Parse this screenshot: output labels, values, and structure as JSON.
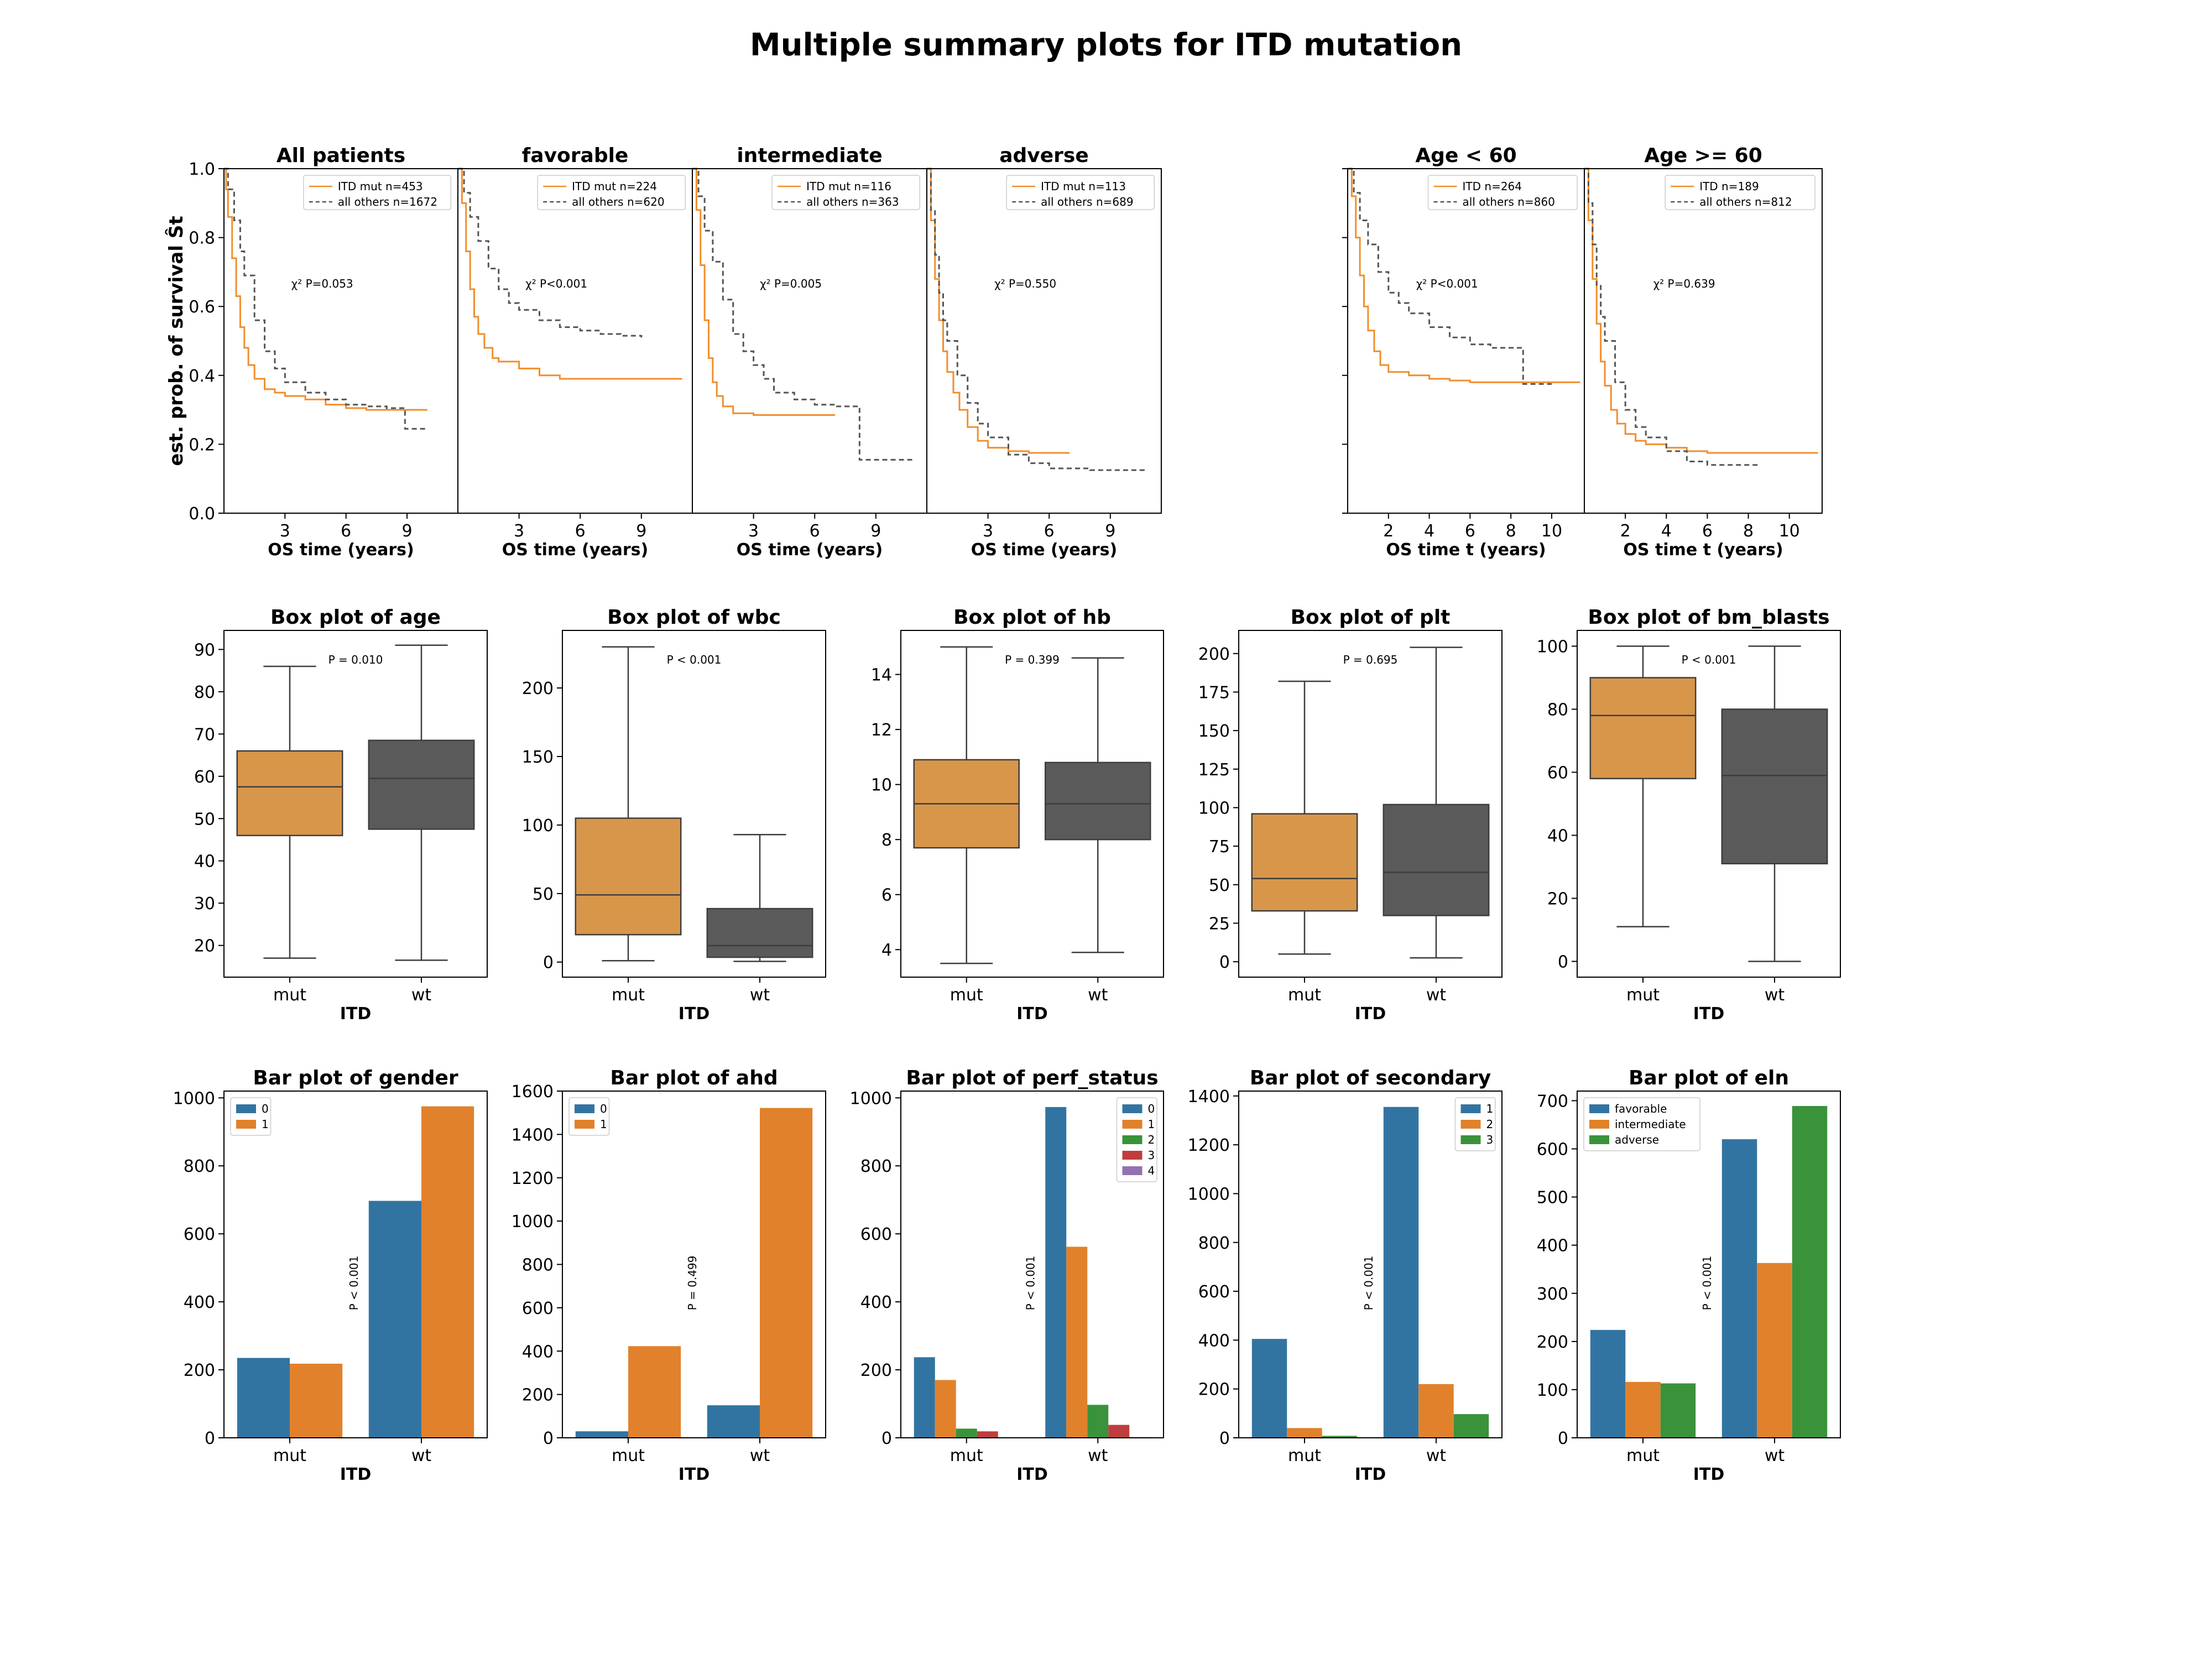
{
  "figure": {
    "title": "Multiple summary plots for ITD mutation"
  },
  "colors": {
    "mut": "#f28e2b",
    "wt": "#555555",
    "box_mut": "#d8964a",
    "box_wt": "#5a5a5a",
    "bar_blue": "#3274a1",
    "bar_orange": "#e1812c",
    "bar_green": "#3a923a",
    "bar_red": "#c03d3e",
    "bar_purple": "#9372b2"
  },
  "chart_data": [
    {
      "type": "line",
      "title": "All patients",
      "ylabel": "est. prob. of survival Ŝt",
      "xlabel": "OS time (years)",
      "xlim": [
        0,
        11.5
      ],
      "ylim": [
        0,
        1
      ],
      "xticks": [
        3,
        6,
        9
      ],
      "yticks": [
        0.0,
        0.2,
        0.4,
        0.6,
        0.8,
        1.0
      ],
      "annotation": "χ² P=0.053",
      "legend_position": "top-right",
      "series": [
        {
          "name": "ITD  mut n=453",
          "style": "solid",
          "x": [
            0,
            0.1,
            0.2,
            0.4,
            0.6,
            0.8,
            1,
            1.2,
            1.5,
            2,
            2.5,
            3,
            4,
            5,
            6,
            7,
            8,
            9,
            10
          ],
          "y": [
            1,
            0.94,
            0.86,
            0.74,
            0.63,
            0.54,
            0.48,
            0.43,
            0.39,
            0.36,
            0.35,
            0.34,
            0.33,
            0.315,
            0.305,
            0.3,
            0.3,
            0.3,
            0.3
          ]
        },
        {
          "name": "all others n=1672",
          "style": "dashed",
          "x": [
            0,
            0.2,
            0.5,
            0.8,
            1,
            1.5,
            2,
            2.5,
            3,
            4,
            5,
            6,
            7,
            8,
            8.8,
            8.9,
            10
          ],
          "y": [
            1,
            0.94,
            0.85,
            0.76,
            0.69,
            0.56,
            0.47,
            0.42,
            0.38,
            0.35,
            0.33,
            0.315,
            0.31,
            0.305,
            0.305,
            0.245,
            0.245
          ]
        }
      ]
    },
    {
      "type": "line",
      "title": "favorable",
      "xlabel": "OS time (years)",
      "xlim": [
        0,
        11.5
      ],
      "ylim": [
        0,
        1
      ],
      "xticks": [
        3,
        6,
        9
      ],
      "annotation": "χ² P<0.001",
      "legend_position": "top-right",
      "series": [
        {
          "name": "ITD  mut n=224",
          "style": "solid",
          "x": [
            0,
            0.2,
            0.4,
            0.6,
            0.8,
            1,
            1.3,
            1.7,
            2,
            3,
            4,
            5,
            6,
            8,
            11
          ],
          "y": [
            1,
            0.9,
            0.76,
            0.65,
            0.57,
            0.52,
            0.48,
            0.45,
            0.44,
            0.42,
            0.4,
            0.39,
            0.39,
            0.39,
            0.39
          ]
        },
        {
          "name": "all others n=620",
          "style": "dashed",
          "x": [
            0,
            0.3,
            0.6,
            1,
            1.5,
            2,
            2.5,
            3,
            4,
            5,
            6,
            7,
            8,
            9
          ],
          "y": [
            1,
            0.93,
            0.86,
            0.79,
            0.71,
            0.65,
            0.61,
            0.59,
            0.56,
            0.54,
            0.53,
            0.52,
            0.515,
            0.51
          ]
        }
      ]
    },
    {
      "type": "line",
      "title": "intermediate",
      "xlabel": "OS time (years)",
      "xlim": [
        0,
        11.5
      ],
      "ylim": [
        0,
        1
      ],
      "xticks": [
        3,
        6,
        9
      ],
      "annotation": "χ² P=0.005",
      "legend_position": "top-right",
      "series": [
        {
          "name": "ITD  mut n=116",
          "style": "solid",
          "x": [
            0,
            0.2,
            0.4,
            0.6,
            0.8,
            1,
            1.2,
            1.5,
            2,
            2.5,
            3,
            4,
            5,
            7
          ],
          "y": [
            1,
            0.88,
            0.72,
            0.56,
            0.45,
            0.38,
            0.34,
            0.31,
            0.29,
            0.29,
            0.285,
            0.285,
            0.285,
            0.285
          ]
        },
        {
          "name": "all others n=363",
          "style": "dashed",
          "x": [
            0,
            0.3,
            0.6,
            1,
            1.5,
            2,
            2.5,
            3,
            3.5,
            4,
            5,
            6,
            7,
            8.1,
            8.2,
            10.8
          ],
          "y": [
            1,
            0.92,
            0.82,
            0.73,
            0.62,
            0.52,
            0.47,
            0.43,
            0.39,
            0.35,
            0.33,
            0.315,
            0.31,
            0.31,
            0.155,
            0.155
          ]
        }
      ]
    },
    {
      "type": "line",
      "title": "adverse",
      "xlabel": "OS time (years)",
      "xlim": [
        0,
        11.5
      ],
      "ylim": [
        0,
        1
      ],
      "xticks": [
        3,
        6,
        9
      ],
      "annotation": "χ² P=0.550",
      "legend_position": "top-right",
      "series": [
        {
          "name": "ITD  mut n=113",
          "style": "solid",
          "x": [
            0,
            0.2,
            0.4,
            0.6,
            0.8,
            1,
            1.3,
            1.6,
            2,
            2.5,
            3,
            4,
            5,
            6,
            7
          ],
          "y": [
            1,
            0.85,
            0.68,
            0.56,
            0.47,
            0.41,
            0.35,
            0.3,
            0.25,
            0.21,
            0.19,
            0.18,
            0.175,
            0.175,
            0.175
          ]
        },
        {
          "name": "all others n=689",
          "style": "dashed",
          "x": [
            0,
            0.2,
            0.4,
            0.6,
            0.8,
            1,
            1.5,
            2,
            2.5,
            3,
            4,
            5,
            6,
            8,
            10.8
          ],
          "y": [
            1,
            0.88,
            0.75,
            0.64,
            0.56,
            0.5,
            0.4,
            0.32,
            0.26,
            0.22,
            0.17,
            0.145,
            0.13,
            0.125,
            0.125
          ]
        }
      ]
    },
    {
      "type": "line",
      "title": "Age < 60",
      "xlabel": "OS time t (years)",
      "xlim": [
        0,
        11.6
      ],
      "ylim": [
        0,
        1
      ],
      "xticks": [
        2,
        4,
        6,
        8,
        10
      ],
      "annotation": "χ² P<0.001",
      "legend_position": "top-right",
      "series": [
        {
          "name": "ITD n=264",
          "style": "solid",
          "x": [
            0,
            0.2,
            0.4,
            0.6,
            0.8,
            1,
            1.3,
            1.6,
            2,
            3,
            4,
            5,
            6,
            8,
            11.4
          ],
          "y": [
            1,
            0.92,
            0.8,
            0.69,
            0.6,
            0.53,
            0.47,
            0.43,
            0.41,
            0.4,
            0.39,
            0.385,
            0.38,
            0.38,
            0.38
          ]
        },
        {
          "name": "all others n=860",
          "style": "dashed",
          "x": [
            0,
            0.3,
            0.6,
            1,
            1.5,
            2,
            2.5,
            3,
            4,
            5,
            6,
            7,
            8.5,
            8.6,
            10
          ],
          "y": [
            1,
            0.93,
            0.85,
            0.78,
            0.7,
            0.64,
            0.61,
            0.58,
            0.54,
            0.51,
            0.49,
            0.48,
            0.475,
            0.375,
            0.375
          ]
        }
      ]
    },
    {
      "type": "line",
      "title": "Age >= 60",
      "xlabel": "OS time t (years)",
      "xlim": [
        0,
        11.6
      ],
      "ylim": [
        0,
        1
      ],
      "xticks": [
        2,
        4,
        6,
        8,
        10
      ],
      "annotation": "χ² P=0.639",
      "legend_position": "top-right",
      "series": [
        {
          "name": "ITD n=189",
          "style": "solid",
          "x": [
            0,
            0.2,
            0.4,
            0.6,
            0.8,
            1,
            1.3,
            1.6,
            2,
            2.5,
            3,
            4,
            5,
            6,
            8,
            11.4
          ],
          "y": [
            1,
            0.85,
            0.68,
            0.55,
            0.44,
            0.37,
            0.3,
            0.26,
            0.23,
            0.21,
            0.2,
            0.19,
            0.18,
            0.175,
            0.175,
            0.175
          ]
        },
        {
          "name": "all others n=812",
          "style": "dashed",
          "x": [
            0,
            0.2,
            0.4,
            0.6,
            0.8,
            1,
            1.5,
            2,
            2.5,
            3,
            4,
            5,
            6,
            7,
            8.5
          ],
          "y": [
            1,
            0.9,
            0.78,
            0.66,
            0.57,
            0.5,
            0.38,
            0.3,
            0.25,
            0.22,
            0.18,
            0.15,
            0.14,
            0.14,
            0.14
          ]
        }
      ]
    },
    {
      "type": "box",
      "title": "Box plot of age",
      "xlabel": "ITD",
      "categories": [
        "mut",
        "wt"
      ],
      "ylim": [
        12.5,
        94.5
      ],
      "yticks": [
        20,
        30,
        40,
        50,
        60,
        70,
        80,
        90
      ],
      "annotation": "P = 0.010",
      "boxes": [
        {
          "name": "mut",
          "min": 17,
          "q1": 46,
          "median": 57.5,
          "q3": 66,
          "max": 86
        },
        {
          "name": "wt",
          "min": 16.5,
          "q1": 47.5,
          "median": 59.5,
          "q3": 68.5,
          "max": 91
        }
      ]
    },
    {
      "type": "box",
      "title": "Box plot of wbc",
      "xlabel": "ITD",
      "categories": [
        "mut",
        "wt"
      ],
      "ylim": [
        -11,
        242
      ],
      "yticks": [
        0,
        50,
        100,
        150,
        200
      ],
      "annotation": "P < 0.001",
      "boxes": [
        {
          "name": "mut",
          "min": 1,
          "q1": 20,
          "median": 49,
          "q3": 105,
          "max": 230
        },
        {
          "name": "wt",
          "min": 0.5,
          "q1": 3.5,
          "median": 12,
          "q3": 39,
          "max": 93
        }
      ]
    },
    {
      "type": "box",
      "title": "Box plot of hb",
      "xlabel": "ITD",
      "categories": [
        "mut",
        "wt"
      ],
      "ylim": [
        3.0,
        15.6
      ],
      "yticks": [
        4,
        6,
        8,
        10,
        12,
        14
      ],
      "annotation": "P = 0.399",
      "boxes": [
        {
          "name": "mut",
          "min": 3.5,
          "q1": 7.7,
          "median": 9.3,
          "q3": 10.9,
          "max": 15
        },
        {
          "name": "wt",
          "min": 3.9,
          "q1": 8.0,
          "median": 9.3,
          "q3": 10.8,
          "max": 14.6
        }
      ]
    },
    {
      "type": "box",
      "title": "Box plot of plt",
      "xlabel": "ITD",
      "categories": [
        "mut",
        "wt"
      ],
      "ylim": [
        -10,
        215
      ],
      "yticks": [
        0,
        25,
        50,
        75,
        100,
        125,
        150,
        175,
        200
      ],
      "annotation": "P = 0.695",
      "boxes": [
        {
          "name": "mut",
          "min": 5,
          "q1": 33,
          "median": 54,
          "q3": 96,
          "max": 182
        },
        {
          "name": "wt",
          "min": 2.5,
          "q1": 30,
          "median": 58,
          "q3": 102,
          "max": 204
        }
      ]
    },
    {
      "type": "box",
      "title": "Box plot of bm_blasts",
      "xlabel": "ITD",
      "categories": [
        "mut",
        "wt"
      ],
      "ylim": [
        -5,
        105
      ],
      "yticks": [
        0,
        20,
        40,
        60,
        80,
        100
      ],
      "annotation": "P < 0.001",
      "boxes": [
        {
          "name": "mut",
          "min": 11,
          "q1": 58,
          "median": 78,
          "q3": 90,
          "max": 100
        },
        {
          "name": "wt",
          "min": 0,
          "q1": 31,
          "median": 59,
          "q3": 80,
          "max": 100
        }
      ]
    },
    {
      "type": "bar",
      "title": "Bar plot of gender",
      "xlabel": "ITD",
      "categories": [
        "mut",
        "wt"
      ],
      "ylim": [
        0,
        1020
      ],
      "yticks": [
        0,
        200,
        400,
        600,
        800,
        1000
      ],
      "annotation": "P < 0.001",
      "legend_position": "top-left",
      "series": [
        {
          "name": "0",
          "color": "#3274a1",
          "values": [
            235,
            697
          ]
        },
        {
          "name": "1",
          "color": "#e1812c",
          "values": [
            218,
            975
          ]
        }
      ]
    },
    {
      "type": "bar",
      "title": "Bar plot of ahd",
      "xlabel": "ITD",
      "categories": [
        "mut",
        "wt"
      ],
      "ylim": [
        0,
        1600
      ],
      "yticks": [
        0,
        200,
        400,
        600,
        800,
        1000,
        1200,
        1400,
        1600
      ],
      "annotation": "P = 0.499",
      "legend_position": "top-left",
      "series": [
        {
          "name": "0",
          "color": "#3274a1",
          "values": [
            30,
            150
          ]
        },
        {
          "name": "1",
          "color": "#e1812c",
          "values": [
            423,
            1522
          ]
        }
      ]
    },
    {
      "type": "bar",
      "title": "Bar plot of perf_status",
      "xlabel": "ITD",
      "categories": [
        "mut",
        "wt"
      ],
      "ylim": [
        0,
        1020
      ],
      "yticks": [
        0,
        200,
        400,
        600,
        800,
        1000
      ],
      "annotation": "P < 0.001",
      "legend_position": "top-right",
      "series": [
        {
          "name": "0",
          "color": "#3274a1",
          "values": [
            237,
            973
          ]
        },
        {
          "name": "1",
          "color": "#e1812c",
          "values": [
            170,
            562
          ]
        },
        {
          "name": "2",
          "color": "#3a923a",
          "values": [
            27,
            97
          ]
        },
        {
          "name": "3",
          "color": "#c03d3e",
          "values": [
            19,
            38
          ]
        },
        {
          "name": "4",
          "color": "#9372b2",
          "values": [
            0,
            2
          ]
        }
      ]
    },
    {
      "type": "bar",
      "title": "Bar plot of secondary",
      "xlabel": "ITD",
      "categories": [
        "mut",
        "wt"
      ],
      "ylim": [
        0,
        1420
      ],
      "yticks": [
        0,
        200,
        400,
        600,
        800,
        1000,
        1200,
        1400
      ],
      "annotation": "P < 0.001",
      "legend_position": "top-right",
      "series": [
        {
          "name": "1",
          "color": "#3274a1",
          "values": [
            405,
            1355
          ]
        },
        {
          "name": "2",
          "color": "#e1812c",
          "values": [
            40,
            220
          ]
        },
        {
          "name": "3",
          "color": "#3a923a",
          "values": [
            8,
            97
          ]
        }
      ]
    },
    {
      "type": "bar",
      "title": "Bar plot of eln",
      "xlabel": "ITD",
      "categories": [
        "mut",
        "wt"
      ],
      "ylim": [
        0,
        720
      ],
      "yticks": [
        0,
        100,
        200,
        300,
        400,
        500,
        600,
        700
      ],
      "annotation": "P < 0.001",
      "legend_position": "top-left",
      "series": [
        {
          "name": "favorable",
          "color": "#3274a1",
          "values": [
            224,
            620
          ]
        },
        {
          "name": "intermediate",
          "color": "#e1812c",
          "values": [
            116,
            363
          ]
        },
        {
          "name": "adverse",
          "color": "#3a923a",
          "values": [
            113,
            689
          ]
        }
      ]
    }
  ]
}
